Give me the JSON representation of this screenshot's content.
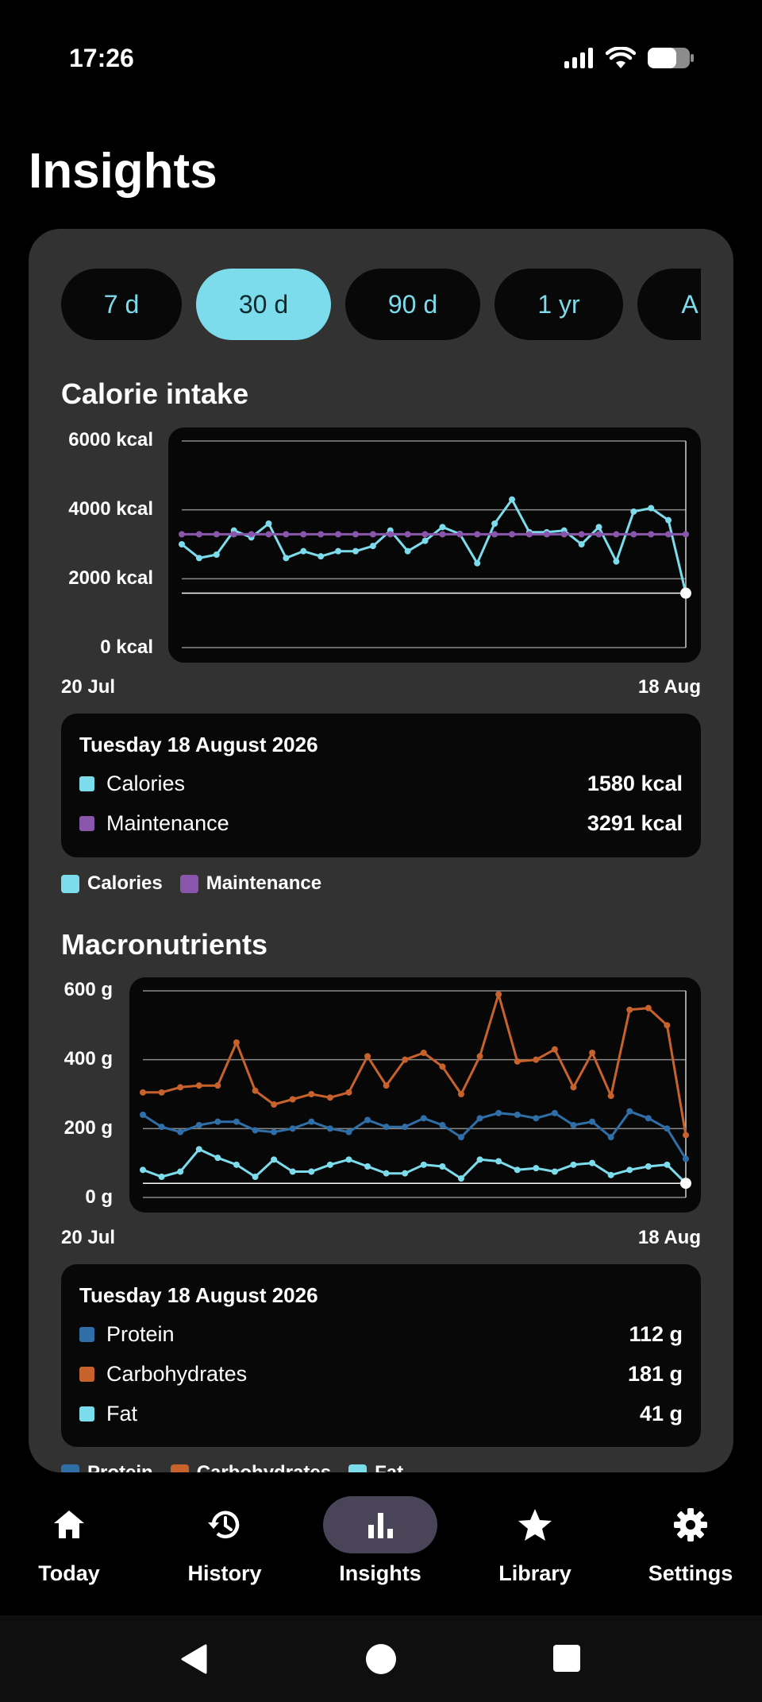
{
  "status_bar": {
    "time": "17:26"
  },
  "page": {
    "title": "Insights"
  },
  "range_tabs": [
    {
      "label": "7 d",
      "active": false
    },
    {
      "label": "30 d",
      "active": true
    },
    {
      "label": "90 d",
      "active": false
    },
    {
      "label": "1 yr",
      "active": false
    },
    {
      "label": "A",
      "active": false
    }
  ],
  "colors": {
    "cyan": "#7ddcec",
    "purple": "#8a56ac",
    "blue": "#2f6ea6",
    "orange": "#c7622d",
    "panel": "#323232"
  },
  "calorie": {
    "title": "Calorie intake",
    "y_ticks": [
      "6000 kcal",
      "4000 kcal",
      "2000 kcal",
      "0 kcal"
    ],
    "x_start": "20 Jul",
    "x_end": "18 Aug",
    "tooltip": {
      "date": "Tuesday 18 August 2026",
      "rows": [
        {
          "label": "Calories",
          "value": "1580 kcal",
          "color": "#7ddcec"
        },
        {
          "label": "Maintenance",
          "value": "3291 kcal",
          "color": "#8a56ac"
        }
      ]
    },
    "legend": [
      {
        "label": "Calories",
        "color": "#7ddcec"
      },
      {
        "label": "Maintenance",
        "color": "#8a56ac"
      }
    ]
  },
  "macros": {
    "title": "Macronutrients",
    "y_ticks": [
      "600 g",
      "400 g",
      "200 g",
      "0 g"
    ],
    "x_start": "20 Jul",
    "x_end": "18 Aug",
    "tooltip": {
      "date": "Tuesday 18 August 2026",
      "rows": [
        {
          "label": "Protein",
          "value": "112 g",
          "color": "#2f6ea6"
        },
        {
          "label": "Carbohydrates",
          "value": "181 g",
          "color": "#c7622d"
        },
        {
          "label": "Fat",
          "value": "41 g",
          "color": "#7ddcec"
        }
      ]
    },
    "legend": [
      {
        "label": "Protein",
        "color": "#2f6ea6"
      },
      {
        "label": "Carbohydrates",
        "color": "#c7622d"
      },
      {
        "label": "Fat",
        "color": "#7ddcec"
      }
    ]
  },
  "nav": [
    {
      "label": "Today",
      "icon": "home-icon",
      "active": false
    },
    {
      "label": "History",
      "icon": "history-icon",
      "active": false
    },
    {
      "label": "Insights",
      "icon": "bar-chart-icon",
      "active": true
    },
    {
      "label": "Library",
      "icon": "star-icon",
      "active": false
    },
    {
      "label": "Settings",
      "icon": "gear-icon",
      "active": false
    }
  ],
  "chart_data": [
    {
      "type": "line",
      "title": "Calorie intake",
      "ylim": [
        0,
        6000
      ],
      "y_unit": "kcal",
      "x_range": [
        "20 Jul",
        "18 Aug"
      ],
      "grid": true,
      "legend_position": "bottom-left",
      "series": [
        {
          "name": "Calories",
          "color": "#7ddcec",
          "values": [
            3000,
            2600,
            2700,
            3400,
            3200,
            3600,
            2600,
            2800,
            2650,
            2800,
            2800,
            2950,
            3400,
            2800,
            3100,
            3500,
            3300,
            2450,
            3600,
            4300,
            3350,
            3350,
            3400,
            3000,
            3500,
            2500,
            3950,
            4050,
            3700,
            1580
          ]
        },
        {
          "name": "Maintenance",
          "color": "#8a56ac",
          "values": [
            3291,
            3291,
            3291,
            3291,
            3291,
            3291,
            3291,
            3291,
            3291,
            3291,
            3291,
            3291,
            3291,
            3291,
            3291,
            3291,
            3291,
            3291,
            3291,
            3291,
            3291,
            3291,
            3291,
            3291,
            3291,
            3291,
            3291,
            3291,
            3291,
            3291
          ]
        }
      ]
    },
    {
      "type": "line",
      "title": "Macronutrients",
      "ylim": [
        0,
        600
      ],
      "y_unit": "g",
      "x_range": [
        "20 Jul",
        "18 Aug"
      ],
      "grid": true,
      "legend_position": "bottom-left",
      "series": [
        {
          "name": "Protein",
          "color": "#2f6ea6",
          "values": [
            240,
            205,
            190,
            210,
            220,
            220,
            195,
            190,
            200,
            220,
            200,
            190,
            225,
            205,
            205,
            230,
            210,
            175,
            230,
            245,
            240,
            230,
            245,
            210,
            220,
            175,
            250,
            230,
            200,
            112
          ]
        },
        {
          "name": "Carbohydrates",
          "color": "#c7622d",
          "values": [
            305,
            305,
            320,
            325,
            325,
            450,
            310,
            270,
            285,
            300,
            290,
            305,
            410,
            325,
            400,
            420,
            380,
            300,
            410,
            590,
            395,
            400,
            430,
            320,
            420,
            295,
            545,
            550,
            500,
            181
          ]
        },
        {
          "name": "Fat",
          "color": "#7ddcec",
          "values": [
            80,
            60,
            75,
            140,
            115,
            95,
            60,
            110,
            75,
            75,
            95,
            110,
            90,
            70,
            70,
            95,
            90,
            55,
            110,
            105,
            80,
            85,
            75,
            95,
            100,
            65,
            80,
            90,
            95,
            41
          ]
        }
      ]
    }
  ]
}
